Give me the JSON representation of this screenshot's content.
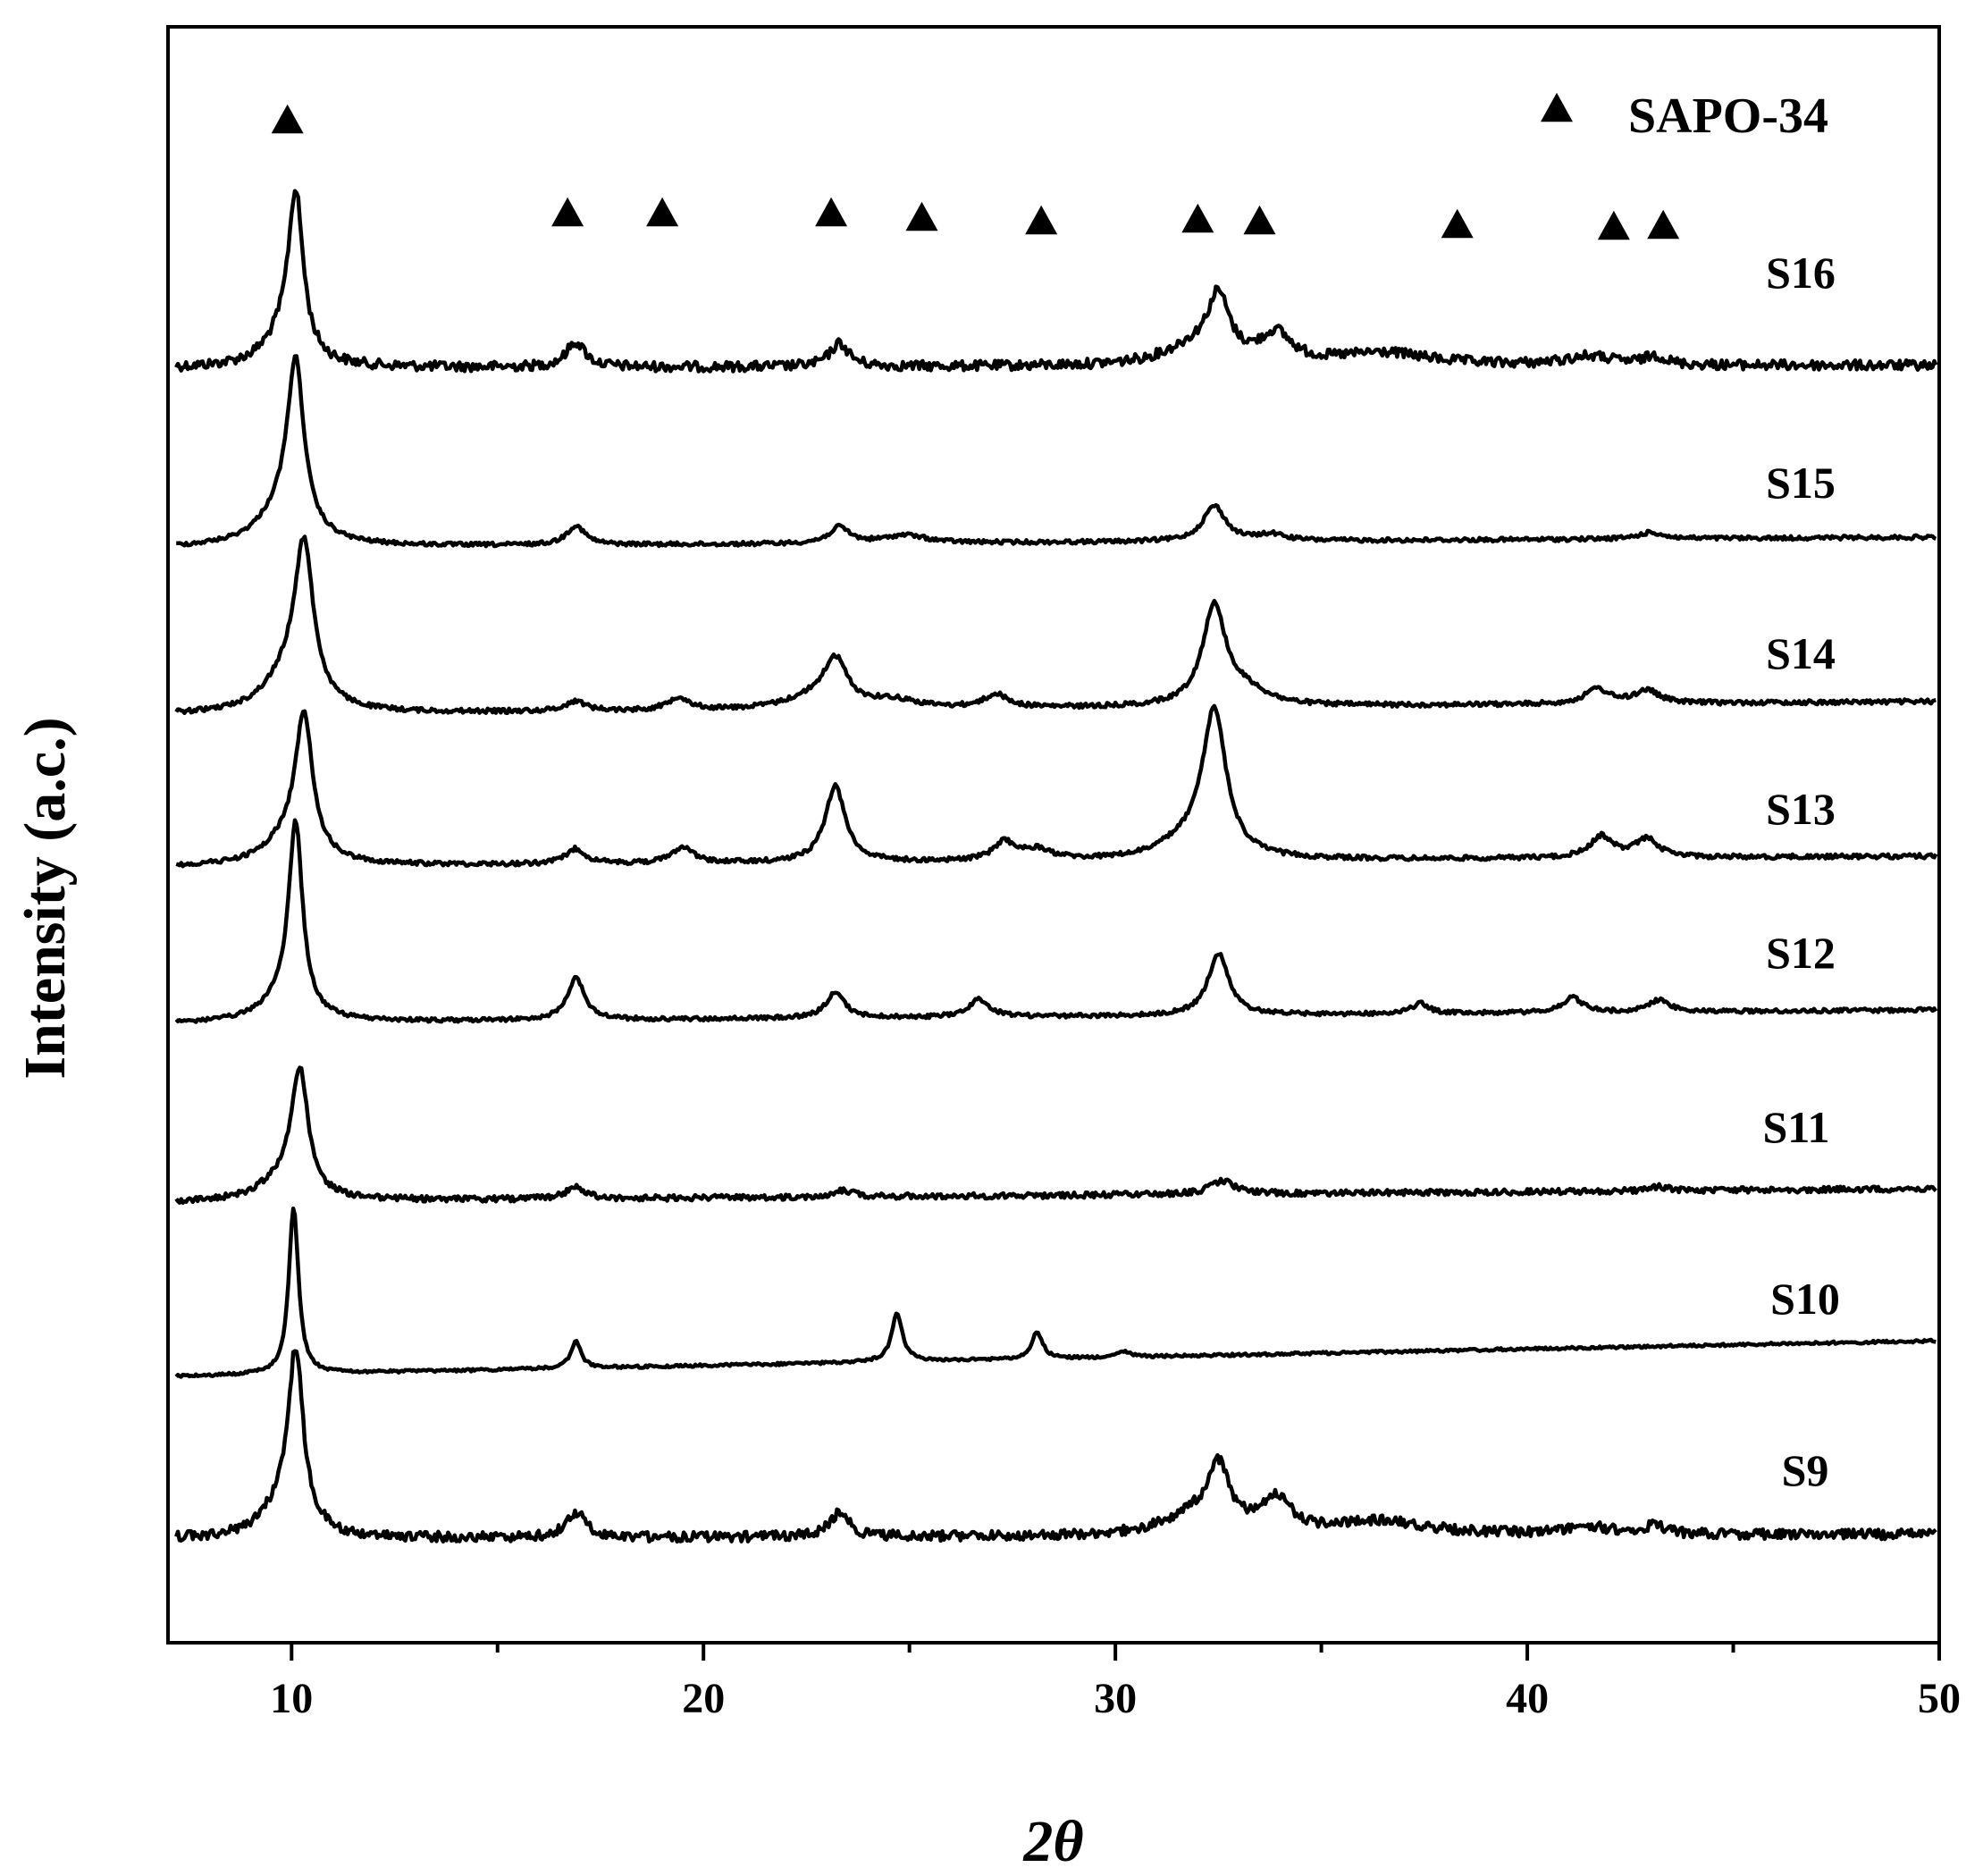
{
  "chart_data": {
    "type": "line",
    "xlabel": "2θ",
    "ylabel": "Intensity (a.c.)",
    "xlim": [
      7,
      50
    ],
    "x_ticks": [
      10,
      20,
      30,
      40,
      50
    ],
    "grid": false,
    "legend": {
      "position": "top-right",
      "entries": [
        {
          "marker": "triangle",
          "label": "SAPO-34"
        }
      ]
    },
    "phase_markers_2theta": [
      9.9,
      16.7,
      19.0,
      23.1,
      25.3,
      28.2,
      32.0,
      33.5,
      38.3,
      42.1,
      43.3
    ],
    "series": [
      {
        "name": "S16",
        "baseline": 0.1,
        "peaks": [
          {
            "x": 10.1,
            "h": 0.88,
            "w": 0.22
          },
          {
            "x": 9.8,
            "h": 0.15,
            "w": 0.6
          },
          {
            "x": 16.9,
            "h": 0.14,
            "w": 0.28
          },
          {
            "x": 23.3,
            "h": 0.13,
            "w": 0.28
          },
          {
            "x": 32.5,
            "h": 0.34,
            "w": 0.32
          },
          {
            "x": 31.9,
            "h": 0.1,
            "w": 0.9
          },
          {
            "x": 33.9,
            "h": 0.16,
            "w": 0.45
          },
          {
            "x": 36.5,
            "h": 0.07,
            "w": 1.4
          },
          {
            "x": 41.5,
            "h": 0.05,
            "w": 0.7
          },
          {
            "x": 43.1,
            "h": 0.05,
            "w": 0.3
          }
        ]
      },
      {
        "name": "S15",
        "baseline": 0.08,
        "peaks": [
          {
            "x": 10.1,
            "h": 1.0,
            "w": 0.24
          },
          {
            "x": 9.8,
            "h": 0.22,
            "w": 0.7
          },
          {
            "x": 16.9,
            "h": 0.12,
            "w": 0.27
          },
          {
            "x": 23.3,
            "h": 0.1,
            "w": 0.3
          },
          {
            "x": 24.9,
            "h": 0.05,
            "w": 0.6
          },
          {
            "x": 32.4,
            "h": 0.22,
            "w": 0.33
          },
          {
            "x": 33.8,
            "h": 0.04,
            "w": 0.4
          },
          {
            "x": 43.0,
            "h": 0.04,
            "w": 0.35
          }
        ]
      },
      {
        "name": "S14",
        "baseline": 0.07,
        "peaks": [
          {
            "x": 10.3,
            "h": 0.92,
            "w": 0.28
          },
          {
            "x": 9.9,
            "h": 0.2,
            "w": 0.7
          },
          {
            "x": 16.9,
            "h": 0.06,
            "w": 0.3
          },
          {
            "x": 19.4,
            "h": 0.08,
            "w": 0.3
          },
          {
            "x": 23.2,
            "h": 0.28,
            "w": 0.35
          },
          {
            "x": 22.6,
            "h": 0.06,
            "w": 0.8
          },
          {
            "x": 24.6,
            "h": 0.05,
            "w": 0.7
          },
          {
            "x": 27.1,
            "h": 0.08,
            "w": 0.35
          },
          {
            "x": 32.4,
            "h": 0.6,
            "w": 0.35
          },
          {
            "x": 33.2,
            "h": 0.08,
            "w": 0.6
          },
          {
            "x": 41.7,
            "h": 0.09,
            "w": 0.35
          },
          {
            "x": 42.9,
            "h": 0.08,
            "w": 0.35
          }
        ]
      },
      {
        "name": "S13",
        "baseline": 0.08,
        "peaks": [
          {
            "x": 10.3,
            "h": 0.9,
            "w": 0.26
          },
          {
            "x": 9.9,
            "h": 0.15,
            "w": 0.7
          },
          {
            "x": 16.9,
            "h": 0.1,
            "w": 0.28
          },
          {
            "x": 19.5,
            "h": 0.11,
            "w": 0.3
          },
          {
            "x": 23.2,
            "h": 0.5,
            "w": 0.3
          },
          {
            "x": 27.3,
            "h": 0.12,
            "w": 0.3
          },
          {
            "x": 28.1,
            "h": 0.07,
            "w": 0.45
          },
          {
            "x": 32.4,
            "h": 0.95,
            "w": 0.35
          },
          {
            "x": 31.7,
            "h": 0.1,
            "w": 0.8
          },
          {
            "x": 41.8,
            "h": 0.14,
            "w": 0.33
          },
          {
            "x": 42.9,
            "h": 0.12,
            "w": 0.35
          }
        ]
      },
      {
        "name": "S12",
        "baseline": 0.08,
        "peaks": [
          {
            "x": 10.1,
            "h": 1.25,
            "w": 0.2
          },
          {
            "x": 9.8,
            "h": 0.15,
            "w": 0.6
          },
          {
            "x": 16.9,
            "h": 0.28,
            "w": 0.26
          },
          {
            "x": 23.2,
            "h": 0.17,
            "w": 0.28
          },
          {
            "x": 26.7,
            "h": 0.12,
            "w": 0.3
          },
          {
            "x": 32.5,
            "h": 0.42,
            "w": 0.3
          },
          {
            "x": 37.4,
            "h": 0.07,
            "w": 0.25
          },
          {
            "x": 41.1,
            "h": 0.1,
            "w": 0.3
          },
          {
            "x": 43.2,
            "h": 0.08,
            "w": 0.3
          }
        ]
      },
      {
        "name": "S11",
        "baseline": 0.06,
        "peaks": [
          {
            "x": 10.2,
            "h": 0.9,
            "w": 0.24
          },
          {
            "x": 9.8,
            "h": 0.15,
            "w": 0.65
          },
          {
            "x": 16.9,
            "h": 0.09,
            "w": 0.28
          },
          {
            "x": 23.4,
            "h": 0.05,
            "w": 0.3
          },
          {
            "x": 32.6,
            "h": 0.1,
            "w": 0.35
          },
          {
            "x": 43.2,
            "h": 0.03,
            "w": 0.3
          }
        ]
      },
      {
        "name": "S10",
        "baseline": 0.1,
        "peaks": [
          {
            "x": 10.05,
            "h": 1.25,
            "w": 0.14
          },
          {
            "x": 16.9,
            "h": 0.2,
            "w": 0.15
          },
          {
            "x": 24.7,
            "h": 0.36,
            "w": 0.16
          },
          {
            "x": 28.1,
            "h": 0.2,
            "w": 0.16
          },
          {
            "x": 30.2,
            "h": 0.04,
            "w": 0.2
          }
        ]
      },
      {
        "name": "S9",
        "baseline": 0.1,
        "peaks": [
          {
            "x": 10.1,
            "h": 1.1,
            "w": 0.22
          },
          {
            "x": 9.8,
            "h": 0.2,
            "w": 0.6
          },
          {
            "x": 16.9,
            "h": 0.17,
            "w": 0.28
          },
          {
            "x": 23.3,
            "h": 0.16,
            "w": 0.28
          },
          {
            "x": 32.5,
            "h": 0.4,
            "w": 0.32
          },
          {
            "x": 31.9,
            "h": 0.12,
            "w": 0.9
          },
          {
            "x": 33.9,
            "h": 0.22,
            "w": 0.45
          },
          {
            "x": 36.5,
            "h": 0.09,
            "w": 1.4
          },
          {
            "x": 41.5,
            "h": 0.05,
            "w": 0.7
          },
          {
            "x": 43.1,
            "h": 0.06,
            "w": 0.3
          }
        ]
      }
    ]
  }
}
